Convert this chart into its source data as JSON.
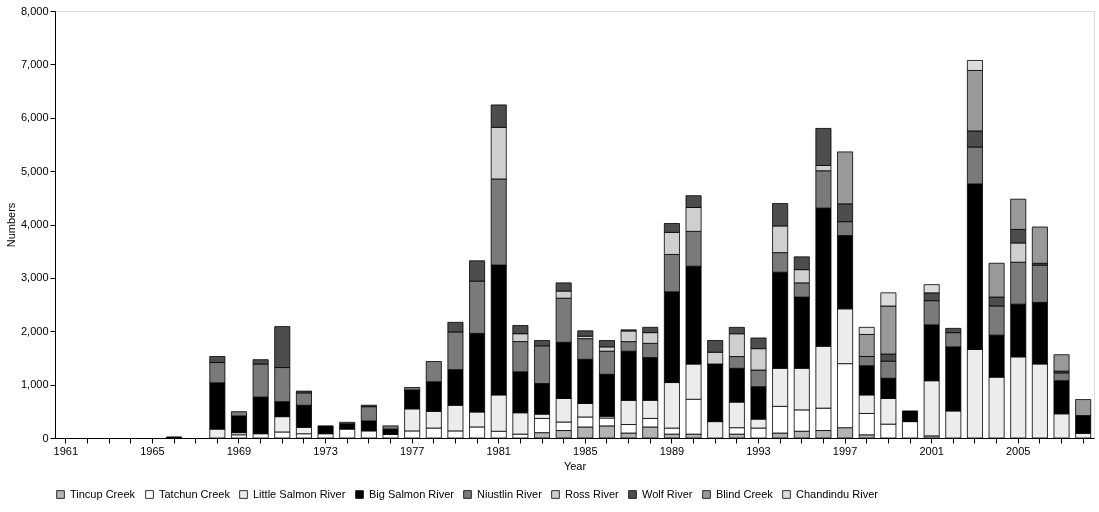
{
  "chart_data": {
    "type": "bar",
    "stacked": true,
    "xlabel": "Year",
    "ylabel": "Numbers",
    "legend": "bottom",
    "grid": false,
    "ylim": [
      0,
      8000
    ],
    "yticks": [
      0,
      {
        "value": 1000,
        "label": "1,000"
      },
      {
        "value": 2000,
        "label": "2,000"
      },
      {
        "value": 3000,
        "label": "3,000"
      },
      {
        "value": 4000,
        "label": "4,000"
      },
      {
        "value": 5000,
        "label": "5,000"
      },
      {
        "value": 6000,
        "label": "6,000"
      },
      {
        "value": 7000,
        "label": "7,000"
      },
      {
        "value": 8000,
        "label": "8,000"
      }
    ],
    "categories": [
      "1961",
      null,
      null,
      null,
      "1965",
      null,
      null,
      null,
      "1969",
      null,
      null,
      null,
      "1973",
      null,
      null,
      null,
      "1977",
      null,
      null,
      null,
      "1981",
      null,
      null,
      null,
      "1985",
      null,
      null,
      null,
      "1989",
      null,
      null,
      null,
      "1993",
      null,
      null,
      null,
      "1997",
      null,
      null,
      null,
      "2001",
      null,
      null,
      null,
      "2005",
      null,
      null,
      null
    ],
    "series": [
      {
        "name": "Tincup Creek",
        "color": "#b3b3b3",
        "values": [
          null,
          null,
          null,
          null,
          null,
          null,
          null,
          null,
          null,
          null,
          null,
          null,
          null,
          null,
          null,
          null,
          null,
          null,
          null,
          null,
          null,
          null,
          100,
          140,
          207,
          227,
          93,
          207,
          73,
          73,
          null,
          73,
          null,
          93,
          127,
          140,
          193,
          60,
          null,
          null,
          40,
          null,
          null,
          null,
          null,
          null,
          null,
          null
        ]
      },
      {
        "name": "Tatchun Creek",
        "color": "#ffffff",
        "values": [
          null,
          null,
          null,
          null,
          null,
          null,
          null,
          null,
          60,
          80,
          113,
          80,
          80,
          167,
          133,
          67,
          133,
          187,
          133,
          207,
          127,
          73,
          267,
          160,
          187,
          147,
          160,
          160,
          113,
          653,
          null,
          120,
          187,
          500,
          400,
          420,
          1200,
          400,
          260,
          307,
          null,
          null,
          null,
          null,
          null,
          null,
          null,
          null
        ]
      },
      {
        "name": "Little Salmon River",
        "color": "#ececec",
        "values": [
          null,
          null,
          null,
          null,
          null,
          null,
          null,
          167,
          40,
          null,
          287,
          120,
          null,
          null,
          null,
          null,
          413,
          313,
          480,
          280,
          680,
          400,
          80,
          440,
          253,
          33,
          453,
          340,
          853,
          660,
          307,
          480,
          167,
          713,
          780,
          1160,
          1027,
          347,
          480,
          null,
          1033,
          507,
          1660,
          1140,
          1520,
          1387,
          453,
          87
        ]
      },
      {
        "name": "Big Salmon River",
        "color": "#000000",
        "values": [
          null,
          null,
          null,
          null,
          null,
          20,
          null,
          867,
          313,
          687,
          280,
          413,
          147,
          100,
          187,
          100,
          353,
          553,
          667,
          1473,
          2433,
          767,
          573,
          1053,
          827,
          787,
          920,
          800,
          1700,
          1833,
          1080,
          633,
          607,
          1800,
          1333,
          2587,
          1373,
          547,
          380,
          200,
          1047,
          1200,
          3100,
          787,
          987,
          1153,
          620,
          333
        ]
      },
      {
        "name": "Niustlin River",
        "color": "#7a7a7a",
        "values": [
          null,
          null,
          null,
          null,
          null,
          null,
          null,
          380,
          80,
          620,
          640,
          233,
          null,
          27,
          267,
          60,
          47,
          380,
          707,
          980,
          1613,
          567,
          707,
          827,
          387,
          433,
          180,
          267,
          700,
          653,
          null,
          220,
          313,
          367,
          267,
          700,
          260,
          173,
          320,
          null,
          453,
          267,
          693,
          547,
          787,
          700,
          147,
          null
        ]
      },
      {
        "name": "Ross River",
        "color": "#cfcfcf",
        "values": [
          null,
          null,
          null,
          null,
          null,
          null,
          null,
          null,
          null,
          null,
          null,
          null,
          null,
          null,
          null,
          null,
          null,
          null,
          null,
          null,
          967,
          147,
          null,
          133,
          47,
          80,
          200,
          200,
          413,
          447,
          220,
          427,
          400,
          500,
          247,
          100,
          null,
          null,
          null,
          null,
          null,
          null,
          null,
          null,
          360,
          null,
          null,
          null
        ]
      },
      {
        "name": "Wolf River",
        "color": "#4d4d4d",
        "values": [
          null,
          null,
          null,
          null,
          null,
          null,
          null,
          113,
          null,
          80,
          767,
          33,
          null,
          null,
          27,
          null,
          null,
          null,
          180,
          380,
          420,
          153,
          100,
          153,
          100,
          120,
          20,
          100,
          167,
          220,
          220,
          120,
          200,
          420,
          240,
          693,
          334,
          null,
          133,
          null,
          147,
          80,
          300,
          167,
          253,
          33,
          33,
          null
        ]
      },
      {
        "name": "Blind Creek",
        "color": "#999999",
        "values": [
          null,
          null,
          null,
          null,
          null,
          null,
          null,
          null,
          null,
          null,
          null,
          null,
          null,
          null,
          null,
          null,
          null,
          null,
          null,
          null,
          null,
          null,
          null,
          null,
          null,
          null,
          null,
          null,
          null,
          null,
          null,
          null,
          null,
          null,
          null,
          null,
          973,
          413,
          900,
          null,
          null,
          null,
          1133,
          633,
          567,
          680,
          307,
          300
        ]
      },
      {
        "name": "Chandindu River",
        "color": "#dcdcdc",
        "values": [
          null,
          null,
          null,
          null,
          null,
          null,
          null,
          null,
          null,
          null,
          null,
          null,
          null,
          null,
          null,
          null,
          null,
          null,
          null,
          null,
          null,
          null,
          null,
          null,
          null,
          null,
          null,
          null,
          null,
          null,
          null,
          null,
          null,
          null,
          null,
          null,
          null,
          133,
          247,
          null,
          153,
          null,
          187,
          null,
          null,
          null,
          null,
          null
        ]
      }
    ]
  }
}
